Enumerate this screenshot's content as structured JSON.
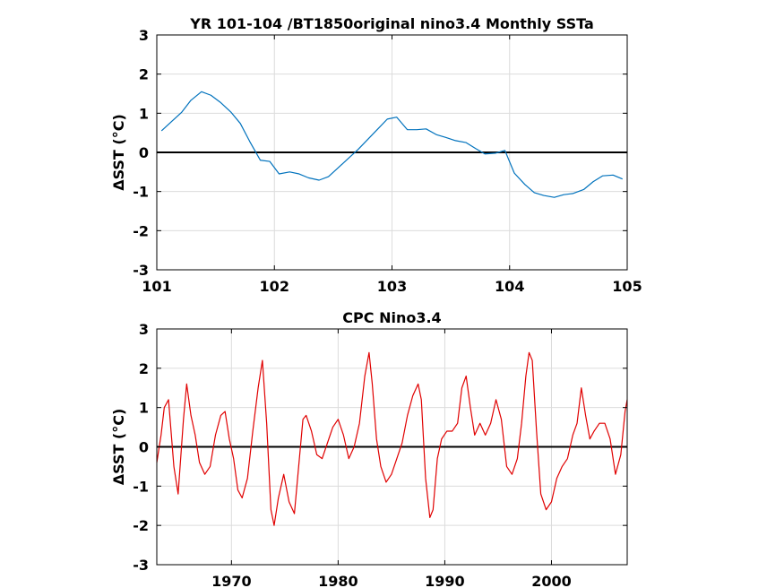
{
  "chart_data": [
    {
      "type": "line",
      "title": "YR 101-104 /BT1850original nino3.4 Monthly SSTa",
      "ylabel": "ΔSST (°C)",
      "xlabel": "",
      "xlim": [
        101,
        105
      ],
      "ylim": [
        -3,
        3
      ],
      "xticks": [
        101,
        102,
        103,
        104,
        105
      ],
      "yticks": [
        -3,
        -2,
        -1,
        0,
        1,
        2,
        3
      ],
      "grid": true,
      "zero_line": true,
      "series": [
        {
          "color": "#0072bd",
          "x": [
            101.04,
            101.13,
            101.21,
            101.29,
            101.38,
            101.46,
            101.54,
            101.63,
            101.71,
            101.79,
            101.88,
            101.96,
            102.04,
            102.13,
            102.21,
            102.29,
            102.38,
            102.46,
            102.54,
            102.63,
            102.71,
            102.79,
            102.88,
            102.96,
            103.04,
            103.13,
            103.21,
            103.29,
            103.38,
            103.46,
            103.54,
            103.63,
            103.71,
            103.79,
            103.88,
            103.96,
            104.04,
            104.13,
            104.21,
            104.29,
            104.38,
            104.46,
            104.54,
            104.63,
            104.71,
            104.79,
            104.88,
            104.96
          ],
          "values": [
            0.55,
            0.8,
            1.02,
            1.33,
            1.55,
            1.46,
            1.28,
            1.03,
            0.74,
            0.28,
            -0.2,
            -0.23,
            -0.55,
            -0.5,
            -0.55,
            -0.65,
            -0.71,
            -0.62,
            -0.4,
            -0.15,
            0.07,
            0.32,
            0.6,
            0.85,
            0.9,
            0.58,
            0.58,
            0.6,
            0.45,
            0.38,
            0.3,
            0.25,
            0.1,
            -0.04,
            -0.02,
            0.05,
            -0.53,
            -0.82,
            -1.03,
            -1.1,
            -1.15,
            -1.08,
            -1.05,
            -0.95,
            -0.75,
            -0.6,
            -0.58,
            -0.68
          ]
        }
      ]
    },
    {
      "type": "line",
      "title": "CPC Nino3.4",
      "ylabel": "ΔSST (°C)",
      "xlabel": "",
      "xlim": [
        1963.0,
        2007.1
      ],
      "ylim": [
        -3,
        3
      ],
      "xticks": [
        1970,
        1980,
        1990,
        2000
      ],
      "yticks": [
        -3,
        -2,
        -1,
        0,
        1,
        2,
        3
      ],
      "grid": true,
      "zero_line": true,
      "series": [
        {
          "color": "#e00000",
          "x": [
            1963.0,
            1963.4,
            1963.7,
            1964.1,
            1964.6,
            1965.0,
            1965.5,
            1965.8,
            1966.2,
            1966.6,
            1967.0,
            1967.5,
            1968.0,
            1968.5,
            1969.0,
            1969.4,
            1969.8,
            1970.2,
            1970.6,
            1971.0,
            1971.5,
            1972.0,
            1972.5,
            1972.9,
            1973.3,
            1973.7,
            1974.0,
            1974.4,
            1974.9,
            1975.4,
            1975.9,
            1976.3,
            1976.7,
            1977.0,
            1977.5,
            1978.0,
            1978.5,
            1979.0,
            1979.5,
            1980.0,
            1980.5,
            1981.0,
            1981.5,
            1982.0,
            1982.5,
            1982.9,
            1983.2,
            1983.6,
            1984.0,
            1984.5,
            1985.0,
            1985.5,
            1986.0,
            1986.5,
            1987.0,
            1987.5,
            1987.8,
            1988.2,
            1988.6,
            1988.9,
            1989.3,
            1989.7,
            1990.2,
            1990.7,
            1991.2,
            1991.6,
            1992.0,
            1992.4,
            1992.8,
            1993.3,
            1993.8,
            1994.3,
            1994.8,
            1995.3,
            1995.8,
            1996.3,
            1996.8,
            1997.2,
            1997.6,
            1997.9,
            1998.2,
            1998.6,
            1999.0,
            1999.5,
            2000.0,
            2000.5,
            2001.0,
            2001.5,
            2002.0,
            2002.4,
            2002.8,
            2003.2,
            2003.6,
            2004.0,
            2004.5,
            2005.0,
            2005.5,
            2006.0,
            2006.5,
            2006.9,
            2007.1
          ],
          "values": [
            -0.4,
            0.3,
            1.0,
            1.2,
            -0.5,
            -1.2,
            0.7,
            1.6,
            0.8,
            0.3,
            -0.4,
            -0.7,
            -0.5,
            0.3,
            0.8,
            0.9,
            0.2,
            -0.3,
            -1.1,
            -1.3,
            -0.8,
            0.4,
            1.5,
            2.2,
            0.6,
            -1.6,
            -2.0,
            -1.3,
            -0.7,
            -1.4,
            -1.7,
            -0.5,
            0.7,
            0.8,
            0.4,
            -0.2,
            -0.3,
            0.1,
            0.5,
            0.7,
            0.3,
            -0.3,
            0.0,
            0.6,
            1.8,
            2.4,
            1.6,
            0.2,
            -0.5,
            -0.9,
            -0.7,
            -0.3,
            0.1,
            0.8,
            1.3,
            1.6,
            1.2,
            -0.8,
            -1.8,
            -1.6,
            -0.3,
            0.2,
            0.4,
            0.4,
            0.6,
            1.5,
            1.8,
            1.0,
            0.3,
            0.6,
            0.3,
            0.6,
            1.2,
            0.7,
            -0.5,
            -0.7,
            -0.3,
            0.6,
            1.8,
            2.4,
            2.2,
            0.4,
            -1.2,
            -1.6,
            -1.4,
            -0.8,
            -0.5,
            -0.3,
            0.3,
            0.6,
            1.5,
            0.8,
            0.2,
            0.4,
            0.6,
            0.6,
            0.2,
            -0.7,
            -0.2,
            0.9,
            1.2
          ]
        }
      ]
    }
  ]
}
